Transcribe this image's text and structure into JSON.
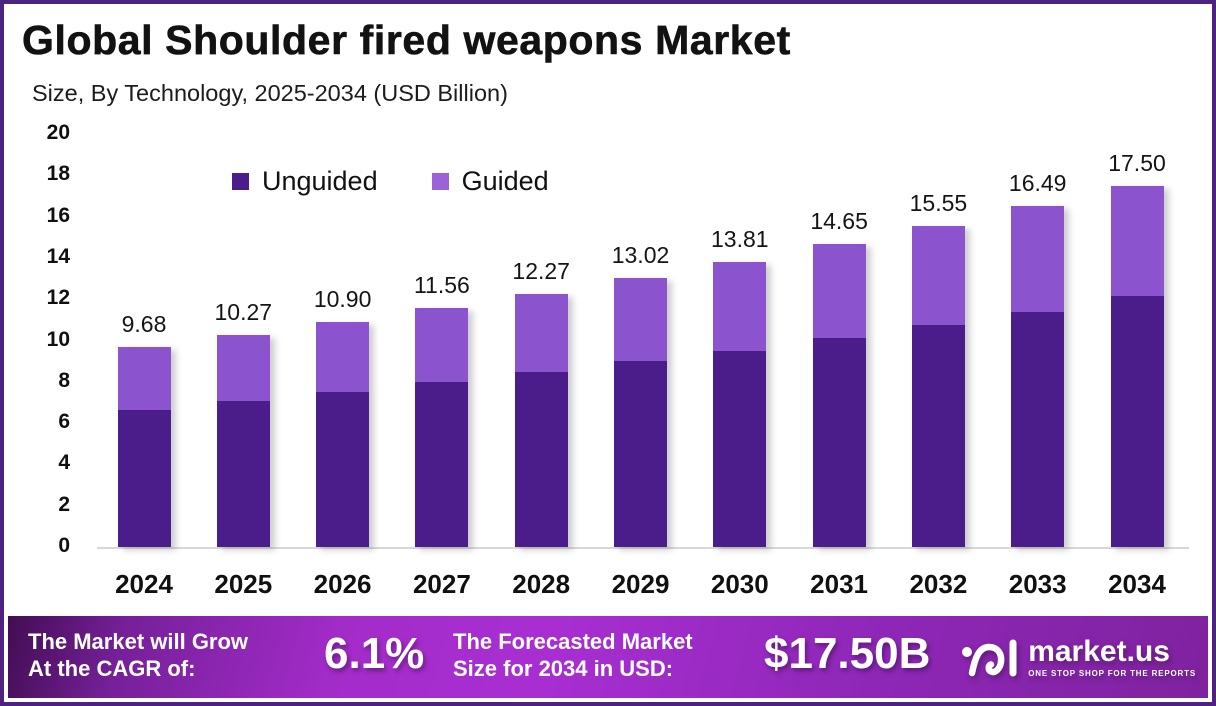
{
  "header": {
    "title": "Global Shoulder fired weapons Market",
    "subtitle": "Size, By Technology, 2025-2034 (USD Billion)"
  },
  "chart_data": {
    "type": "bar",
    "stacked": true,
    "categories": [
      "2024",
      "2025",
      "2026",
      "2027",
      "2028",
      "2029",
      "2030",
      "2031",
      "2032",
      "2033",
      "2034"
    ],
    "series": [
      {
        "name": "Unguided",
        "color": "#4a1d8a",
        "values": [
          6.65,
          7.05,
          7.5,
          8.0,
          8.45,
          9.0,
          9.5,
          10.1,
          10.75,
          11.4,
          12.15
        ]
      },
      {
        "name": "Guided",
        "color": "#8b53cd",
        "values": [
          3.03,
          3.22,
          3.4,
          3.56,
          3.82,
          4.02,
          4.31,
          4.55,
          4.8,
          5.09,
          5.35
        ]
      }
    ],
    "totals": [
      "9.68",
      "10.27",
      "10.90",
      "11.56",
      "12.27",
      "13.02",
      "13.81",
      "14.65",
      "15.55",
      "16.49",
      "17.50"
    ],
    "ylim": [
      0,
      20
    ],
    "ytick_step": 2,
    "grid": false,
    "legend_position": "top"
  },
  "footer": {
    "cagr_label_line1": "The Market will Grow",
    "cagr_label_line2": "At the CAGR of:",
    "cagr_value": "6.1%",
    "forecast_label_line1": "The Forecasted Market",
    "forecast_label_line2": "Size for 2034 in USD:",
    "forecast_value": "$17.50B",
    "brand": {
      "name": "market.us",
      "tagline": "ONE STOP SHOP FOR THE REPORTS"
    }
  },
  "colors": {
    "unguided": "#4a1d8a",
    "guided": "#8b53cd",
    "legend_guided": "#9c63d9",
    "border": "#4e2280"
  }
}
